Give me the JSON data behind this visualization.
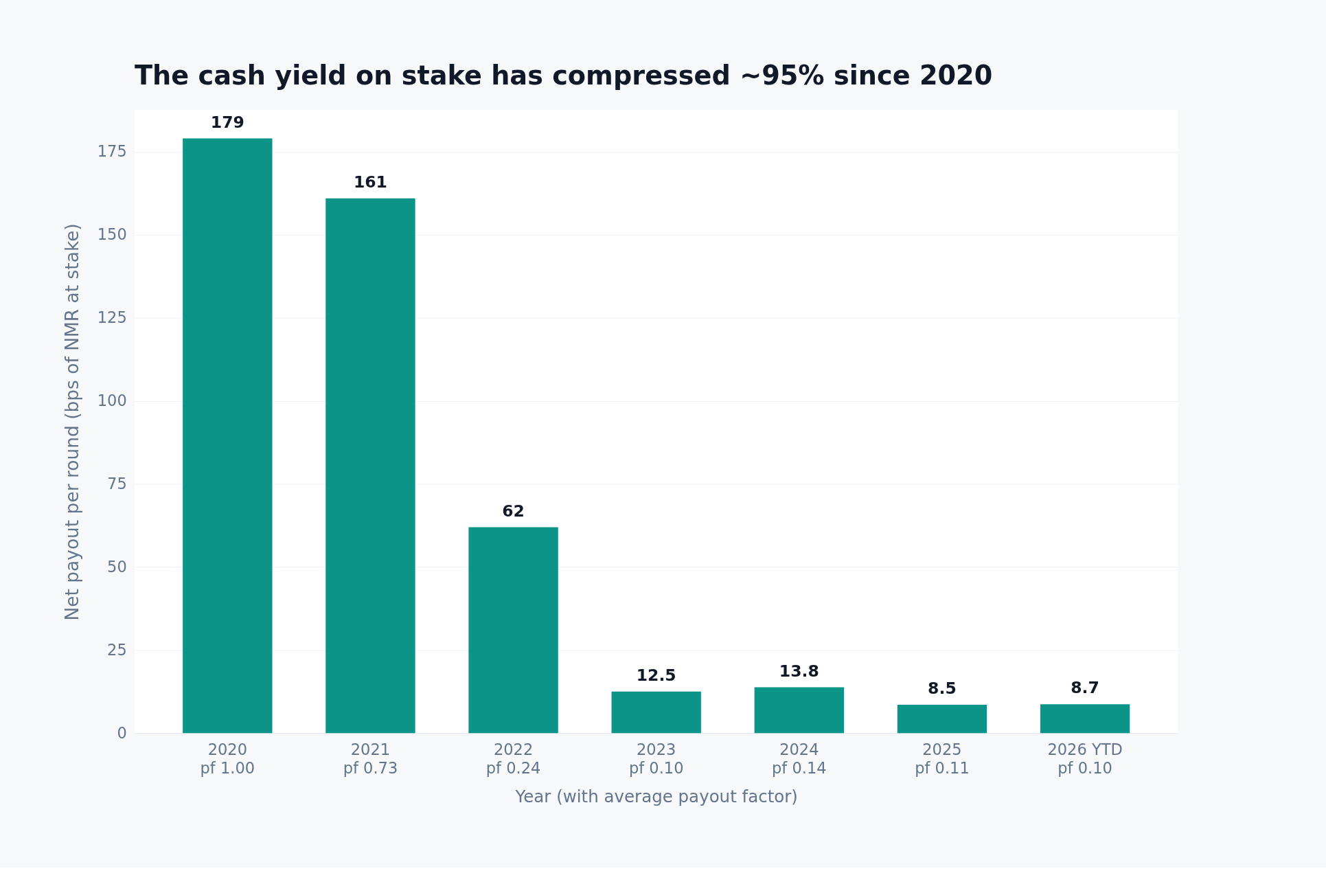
{
  "chart_data": {
    "type": "bar",
    "title": "The cash yield on stake has compressed ~95% since 2020",
    "xlabel": "Year (with average payout factor)",
    "ylabel": "Net payout per round (bps of NMR at stake)",
    "categories": [
      "2020\npf 1.00",
      "2021\npf 0.73",
      "2022\npf 0.24",
      "2023\npf 0.10",
      "2024\npf 0.14",
      "2025\npf 0.11",
      "2026 YTD\npf 0.10"
    ],
    "values": [
      179,
      161,
      62,
      12.5,
      13.8,
      8.5,
      8.7
    ],
    "color": "#0d9488",
    "ylim": [
      0,
      187.5
    ],
    "yticks": [
      0,
      25,
      50,
      75,
      100,
      125,
      150,
      175
    ],
    "grid": "y",
    "data_labels": true
  }
}
